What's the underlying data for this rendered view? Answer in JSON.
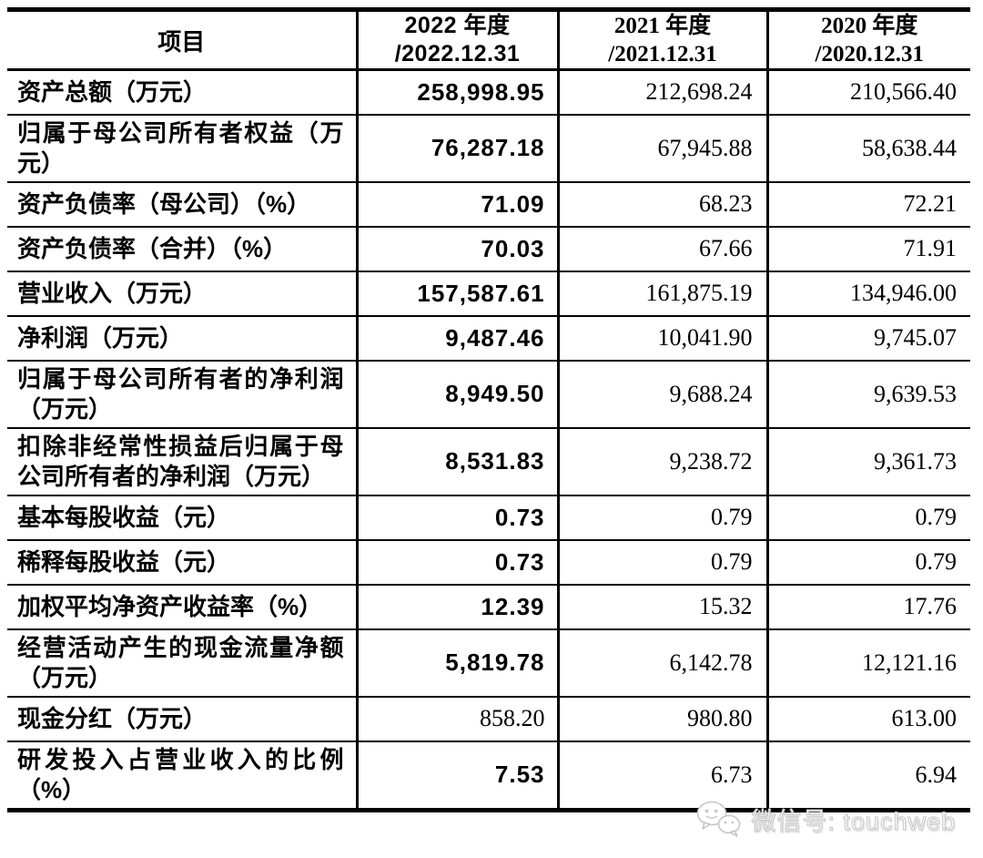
{
  "table": {
    "columns": {
      "item": {
        "lines": [
          "项目"
        ]
      },
      "y2022": {
        "lines": [
          "2022 年度",
          "/2022.12.31"
        ]
      },
      "y2021": {
        "lines": [
          "2021 年度",
          "/2021.12.31"
        ]
      },
      "y2020": {
        "lines": [
          "2020 年度",
          "/2020.12.31"
        ]
      }
    },
    "rows": [
      {
        "label_lines": [
          "资产总额（万元）"
        ],
        "v2022": "258,998.95",
        "v2021": "212,698.24",
        "v2020": "210,566.40",
        "v2022_bold": true
      },
      {
        "label_lines": [
          "归属于母公司所有者权益（万",
          "元）"
        ],
        "v2022": "76,287.18",
        "v2021": "67,945.88",
        "v2020": "58,638.44",
        "v2022_bold": true
      },
      {
        "label_lines": [
          "资产负债率（母公司）（%）"
        ],
        "v2022": "71.09",
        "v2021": "68.23",
        "v2020": "72.21",
        "v2022_bold": true
      },
      {
        "label_lines": [
          "资产负债率（合并）（%）"
        ],
        "v2022": "70.03",
        "v2021": "67.66",
        "v2020": "71.91",
        "v2022_bold": true
      },
      {
        "label_lines": [
          "营业收入（万元）"
        ],
        "v2022": "157,587.61",
        "v2021": "161,875.19",
        "v2020": "134,946.00",
        "v2022_bold": true
      },
      {
        "label_lines": [
          "净利润（万元）"
        ],
        "v2022": "9,487.46",
        "v2021": "10,041.90",
        "v2020": "9,745.07",
        "v2022_bold": true
      },
      {
        "label_lines": [
          "归属于母公司所有者的净利润",
          "（万元）"
        ],
        "v2022": "8,949.50",
        "v2021": "9,688.24",
        "v2020": "9,639.53",
        "v2022_bold": true
      },
      {
        "label_lines": [
          "扣除非经常性损益后归属于母",
          "公司所有者的净利润（万元）"
        ],
        "v2022": "8,531.83",
        "v2021": "9,238.72",
        "v2020": "9,361.73",
        "v2022_bold": true
      },
      {
        "label_lines": [
          "基本每股收益（元）"
        ],
        "v2022": "0.73",
        "v2021": "0.79",
        "v2020": "0.79",
        "v2022_bold": true
      },
      {
        "label_lines": [
          "稀释每股收益（元）"
        ],
        "v2022": "0.73",
        "v2021": "0.79",
        "v2020": "0.79",
        "v2022_bold": true
      },
      {
        "label_lines": [
          "加权平均净资产收益率（%）"
        ],
        "v2022": "12.39",
        "v2021": "15.32",
        "v2020": "17.76",
        "v2022_bold": true
      },
      {
        "label_lines": [
          "经营活动产生的现金流量净额",
          "（万元）"
        ],
        "v2022": "5,819.78",
        "v2021": "6,142.78",
        "v2020": "12,121.16",
        "v2022_bold": true
      },
      {
        "label_lines": [
          "现金分红（万元）"
        ],
        "v2022": "858.20",
        "v2021": "980.80",
        "v2020": "613.00",
        "v2022_bold": false
      },
      {
        "label_lines": [
          "研发投入占营业收入的比例",
          "（%）"
        ],
        "v2022": "7.53",
        "v2021": "6.73",
        "v2020": "6.94",
        "v2022_bold": true
      }
    ]
  },
  "chart_data": {
    "type": "table",
    "columns": [
      "项目",
      "2022 年度/2022.12.31",
      "2021 年度/2021.12.31",
      "2020 年度/2020.12.31"
    ],
    "rows": [
      [
        "资产总额（万元）",
        "258,998.95",
        "212,698.24",
        "210,566.40"
      ],
      [
        "归属于母公司所有者权益（万元）",
        "76,287.18",
        "67,945.88",
        "58,638.44"
      ],
      [
        "资产负债率（母公司）（%）",
        "71.09",
        "68.23",
        "72.21"
      ],
      [
        "资产负债率（合并）（%）",
        "70.03",
        "67.66",
        "71.91"
      ],
      [
        "营业收入（万元）",
        "157,587.61",
        "161,875.19",
        "134,946.00"
      ],
      [
        "净利润（万元）",
        "9,487.46",
        "10,041.90",
        "9,745.07"
      ],
      [
        "归属于母公司所有者的净利润（万元）",
        "8,949.50",
        "9,688.24",
        "9,639.53"
      ],
      [
        "扣除非经常性损益后归属于母公司所有者的净利润（万元）",
        "8,531.83",
        "9,238.72",
        "9,361.73"
      ],
      [
        "基本每股收益（元）",
        "0.73",
        "0.79",
        "0.79"
      ],
      [
        "稀释每股收益（元）",
        "0.73",
        "0.79",
        "0.79"
      ],
      [
        "加权平均净资产收益率（%）",
        "12.39",
        "15.32",
        "17.76"
      ],
      [
        "经营活动产生的现金流量净额（万元）",
        "5,819.78",
        "6,142.78",
        "12,121.16"
      ],
      [
        "现金分红（万元）",
        "858.20",
        "980.80",
        "613.00"
      ],
      [
        "研发投入占营业收入的比例（%）",
        "7.53",
        "6.73",
        "6.94"
      ]
    ]
  },
  "watermark": {
    "icon": "wechat-icon",
    "label": "微信号: touchweb"
  },
  "colors": {
    "background": "#ffffff",
    "border": "#000000",
    "text": "#000000",
    "watermark_gray": "#c6c6c6"
  }
}
